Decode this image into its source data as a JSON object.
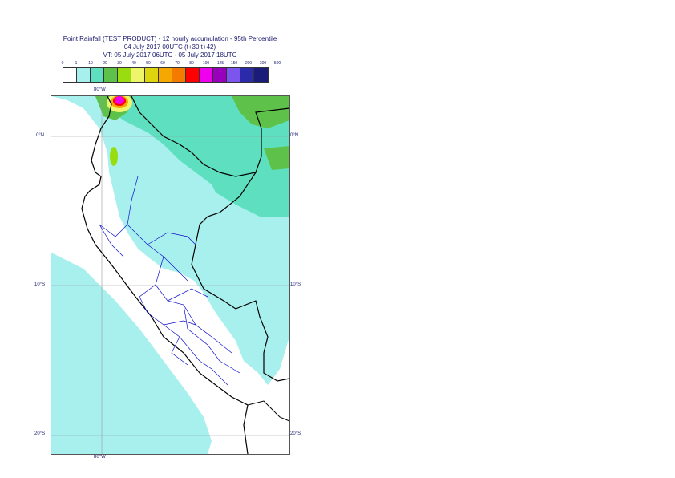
{
  "header": {
    "title": "Point Rainfall (TEST PRODUCT) - 12 hourly accumulation - 95th Percentile",
    "base": "04 July 2017 00UTC (t+30,t+42)",
    "valid": "VT: 05 July 2017 06UTC - 05 July 2017 18UTC"
  },
  "legend": {
    "ticks": [
      "0",
      "1",
      "10",
      "20",
      "30",
      "40",
      "50",
      "60",
      "70",
      "80",
      "100",
      "125",
      "150",
      "200",
      "300",
      "500"
    ],
    "colors": [
      "#ffffff",
      "#a8f0ee",
      "#5ee0c0",
      "#5ec24a",
      "#99dd10",
      "#eef56a",
      "#ddd60e",
      "#f5a800",
      "#f57a00",
      "#ff0000",
      "#ee00ee",
      "#9900bb",
      "#7b55ee",
      "#2a2aaa",
      "#1b1b7a",
      "#0b0b3d"
    ]
  },
  "axes": {
    "lon_top": "80°W",
    "lon_bottom": "80°W",
    "lat_left": [
      "0°N",
      "10°S",
      "20°S"
    ],
    "lat_right": [
      "0°N",
      "10°S",
      "20°S"
    ]
  }
}
